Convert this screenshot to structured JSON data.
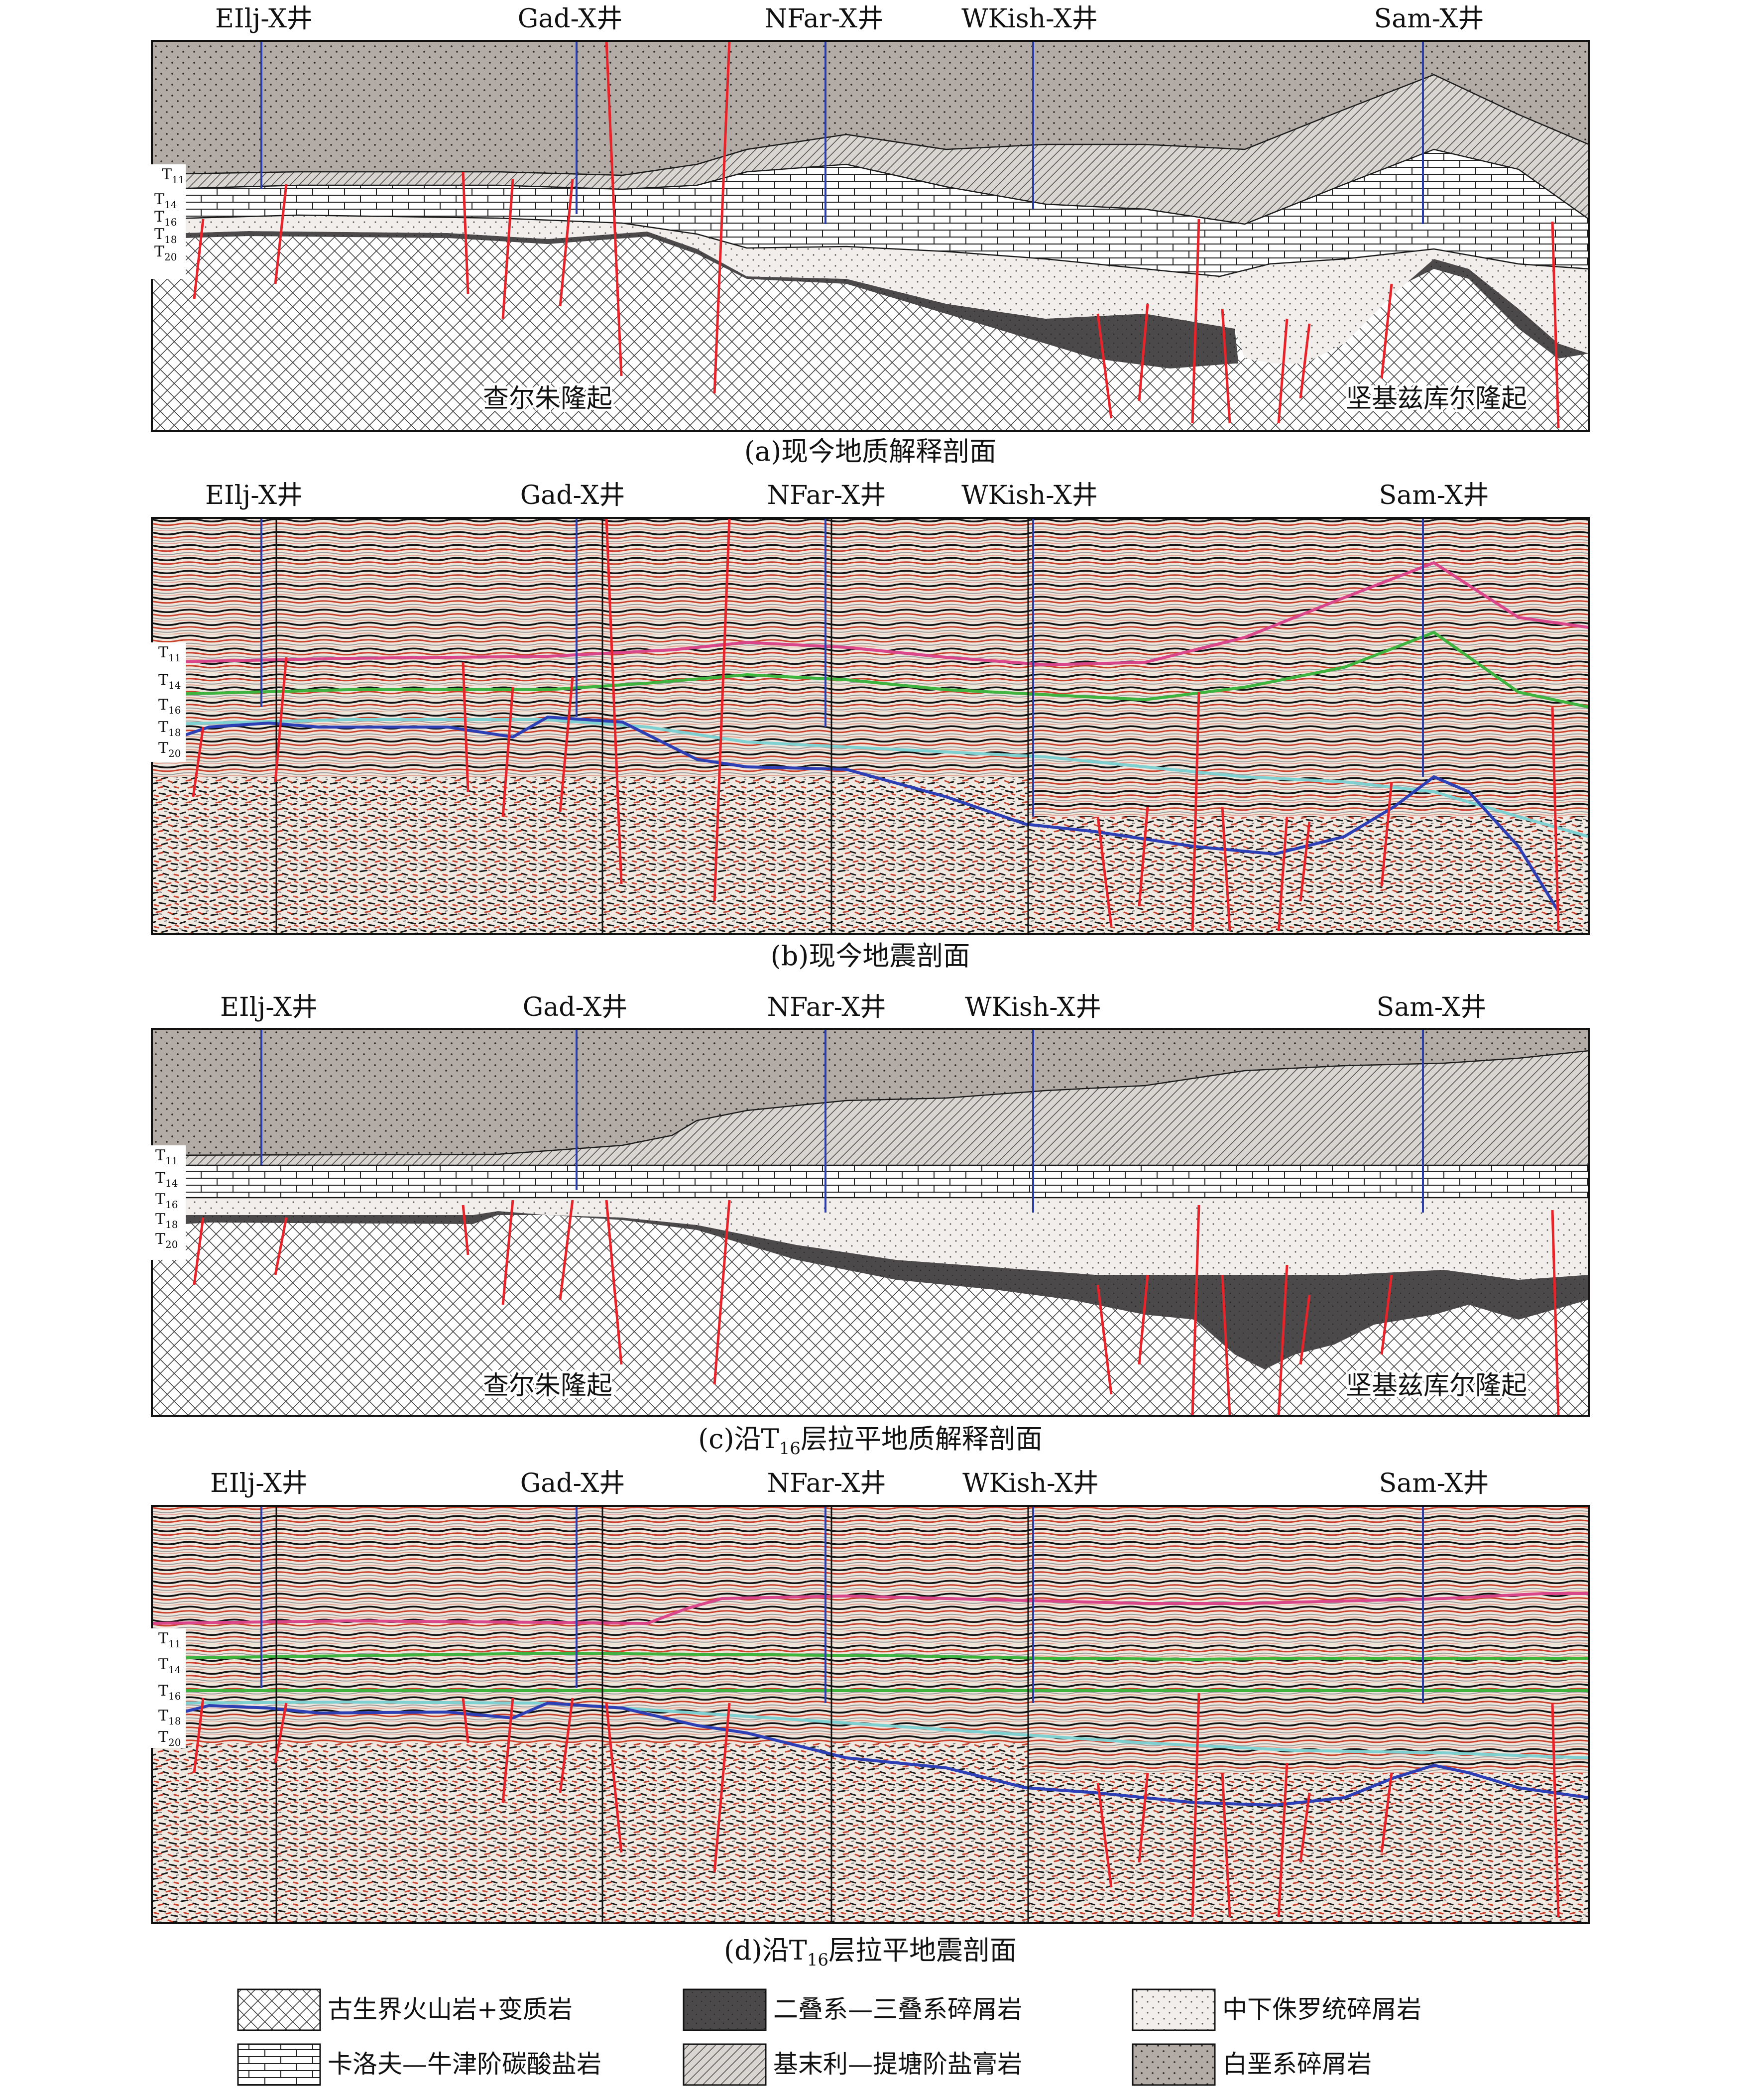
{
  "wells": [
    "EIlj-X井",
    "Gad-X井",
    "NFar-X井",
    "WKish-X井",
    "Sam-X井"
  ],
  "horizons": [
    "T11",
    "T14",
    "T16",
    "T18",
    "T20"
  ],
  "horizon_labels": [
    {
      "main": "T",
      "sub": "11"
    },
    {
      "main": "T",
      "sub": "14"
    },
    {
      "main": "T",
      "sub": "16"
    },
    {
      "main": "T",
      "sub": "18"
    },
    {
      "main": "T",
      "sub": "20"
    }
  ],
  "uplifts": [
    "查尔朱隆起",
    "坚基兹库尔隆起"
  ],
  "panels": {
    "a": {
      "caption": "(a)现今地质解释剖面"
    },
    "b": {
      "caption": "(b)现今地震剖面"
    },
    "c": {
      "caption_pre": "(c)沿T",
      "caption_sub": "16",
      "caption_post": "层拉平地质解释剖面"
    },
    "d": {
      "caption_pre": "(d)沿T",
      "caption_sub": "16",
      "caption_post": "层拉平地震剖面"
    }
  },
  "legend": [
    {
      "label": "古生界火山岩+变质岩",
      "pattern": "crosshatch"
    },
    {
      "label": "二叠系—三叠系碎屑岩",
      "pattern": "dark"
    },
    {
      "label": "中下侏罗统碎屑岩",
      "pattern": "lightdots"
    },
    {
      "label": "卡洛夫—牛津阶碳酸盐岩",
      "pattern": "brick"
    },
    {
      "label": "基末利—提塘阶盐膏岩",
      "pattern": "hatch"
    },
    {
      "label": "白垩系碎屑岩",
      "pattern": "graydots"
    }
  ],
  "colors": {
    "well_line": "#2e3ea8",
    "fault_line": "#e8232a",
    "cretaceous_fill": "#b3aca6",
    "permian_fill": "#4b4949",
    "jurassic_fill": "#f1eeeb",
    "horizon_green": "#3fb33f",
    "horizon_pink": "#d9468a",
    "horizon_blue": "#2c3fb4",
    "horizon_cyan": "#7fd0d0"
  }
}
